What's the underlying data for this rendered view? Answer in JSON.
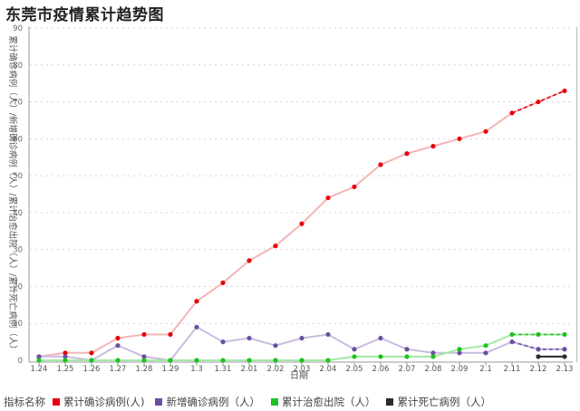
{
  "page": {
    "title": "东莞市疫情累计趋势图"
  },
  "legend": {
    "title": "指标名称"
  },
  "chart_data": {
    "type": "line",
    "title": "东莞市疫情累计趋势图",
    "xlabel": "日期",
    "ylabel": "累计确诊病例（人）/新增确诊病例（人）/累计治愈出院（人）/累计死亡病例（人）",
    "ylim": [
      0,
      90
    ],
    "yticks": [
      0,
      10,
      20,
      30,
      40,
      50,
      60,
      70,
      80,
      90
    ],
    "legend_position": "bottom-left",
    "categories": [
      "1.24",
      "1.25",
      "1.26",
      "1.27",
      "1.28",
      "1.29",
      "1.3",
      "1.31",
      "2.01",
      "2.02",
      "2.03",
      "2.04",
      "2.05",
      "2.06",
      "2.07",
      "2.08",
      "2.09",
      "2.1",
      "2.11",
      "2.12",
      "2.13"
    ],
    "series": [
      {
        "name": "累计确诊病例(人)",
        "color": "#e8000b",
        "line_color": "#f5b5b5",
        "values": [
          1,
          2,
          2,
          6,
          7,
          7,
          16,
          21,
          27,
          31,
          37,
          44,
          47,
          53,
          56,
          58,
          60,
          62,
          67,
          70,
          73
        ]
      },
      {
        "name": "新增确诊病例（人）",
        "color": "#6b4fa0",
        "line_color": "#c9bde0",
        "values": [
          1,
          1,
          0,
          4,
          1,
          0,
          9,
          5,
          6,
          4,
          6,
          7,
          3,
          6,
          3,
          2,
          2,
          2,
          5,
          3,
          3
        ]
      },
      {
        "name": "累计治愈出院（人）",
        "color": "#1ec21e",
        "line_color": "#a5e8a5",
        "values": [
          0,
          0,
          0,
          0,
          0,
          0,
          0,
          0,
          0,
          0,
          0,
          0,
          1,
          1,
          1,
          1,
          3,
          4,
          7,
          7,
          7
        ]
      },
      {
        "name": "累计死亡病例（人）",
        "color": "#2b2b2b",
        "line_color": "#2b2b2b",
        "values": [
          null,
          null,
          null,
          null,
          null,
          null,
          null,
          null,
          null,
          null,
          null,
          null,
          null,
          null,
          null,
          null,
          null,
          null,
          null,
          1,
          1
        ]
      }
    ]
  }
}
